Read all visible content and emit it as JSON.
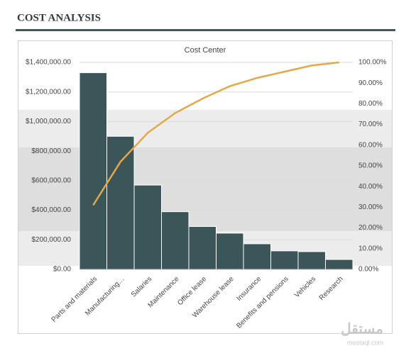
{
  "header": {
    "title": "COST ANALYSIS"
  },
  "watermark": {
    "arabic": "مستقل",
    "latin": "mostaql.com"
  },
  "chart_data": {
    "type": "pareto",
    "title": "Cost Center",
    "categories": [
      "Parts and materials",
      "Manufacturing…",
      "Salaries",
      "Maintenance",
      "Office lease",
      "Warehouse lease",
      "Insurance",
      "Benefits and pensions",
      "Vehicles",
      "Research"
    ],
    "series": [
      {
        "type": "bar",
        "color": "#3b5558",
        "values": [
          1330000,
          900000,
          570000,
          390000,
          290000,
          245000,
          173000,
          125000,
          120000,
          67000
        ]
      },
      {
        "type": "line",
        "axis": "y2",
        "color": "#e2a849",
        "values": [
          31,
          52,
          66,
          75.5,
          82.5,
          88.5,
          92.5,
          95.5,
          98.5,
          100
        ]
      }
    ],
    "ylim": [
      0,
      1400000
    ],
    "yticks": [
      {
        "value": 0,
        "label": "$0.00"
      },
      {
        "value": 200000,
        "label": "$200,000.00"
      },
      {
        "value": 400000,
        "label": "$400,000.00"
      },
      {
        "value": 600000,
        "label": "$600,000.00"
      },
      {
        "value": 800000,
        "label": "$800,000.00"
      },
      {
        "value": 1000000,
        "label": "$1,000,000.00"
      },
      {
        "value": 1200000,
        "label": "$1,200,000.00"
      },
      {
        "value": 1400000,
        "label": "$1,400,000.00"
      }
    ],
    "y2lim": [
      0,
      100
    ],
    "y2ticks": [
      {
        "value": 0,
        "label": "0.00%"
      },
      {
        "value": 10,
        "label": "10.00%"
      },
      {
        "value": 20,
        "label": "20.00%"
      },
      {
        "value": 30,
        "label": "30.00%"
      },
      {
        "value": 40,
        "label": "40.00%"
      },
      {
        "value": 50,
        "label": "50.00%"
      },
      {
        "value": 60,
        "label": "60.00%"
      },
      {
        "value": 70,
        "label": "70.00%"
      },
      {
        "value": 80,
        "label": "80.00%"
      },
      {
        "value": 90,
        "label": "90.00%"
      },
      {
        "value": 100,
        "label": "100.00%"
      }
    ],
    "grid": true
  }
}
